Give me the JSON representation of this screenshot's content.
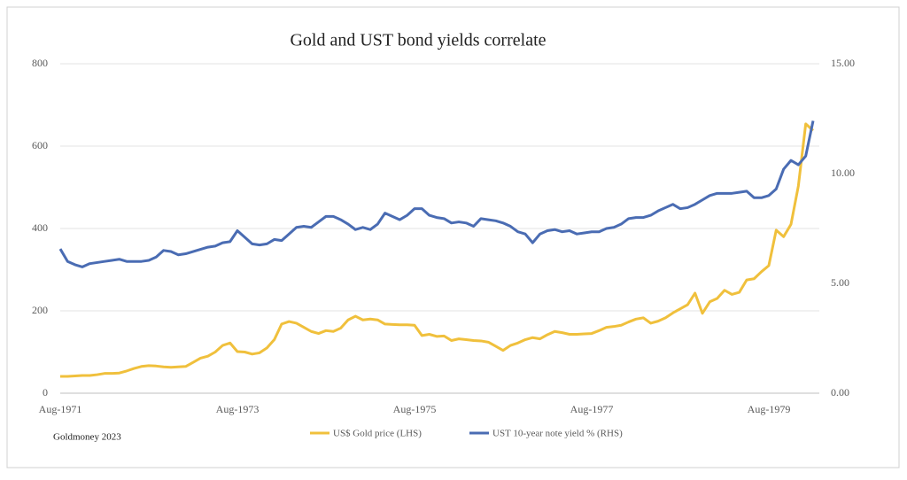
{
  "chart_data": {
    "type": "line",
    "title": "Gold and UST bond yields correlate",
    "annotation": "Goldmoney 2023",
    "categories": [
      "Aug-1971",
      null,
      null,
      null,
      null,
      null,
      null,
      null,
      null,
      null,
      null,
      null,
      null,
      null,
      null,
      null,
      null,
      null,
      null,
      null,
      null,
      null,
      null,
      null,
      "Aug-1973",
      null,
      null,
      null,
      null,
      null,
      null,
      null,
      null,
      null,
      null,
      null,
      null,
      null,
      null,
      null,
      null,
      null,
      null,
      null,
      null,
      null,
      null,
      null,
      "Aug-1975",
      null,
      null,
      null,
      null,
      null,
      null,
      null,
      null,
      null,
      null,
      null,
      null,
      null,
      null,
      null,
      null,
      null,
      null,
      null,
      null,
      null,
      null,
      null,
      "Aug-1977",
      null,
      null,
      null,
      null,
      null,
      null,
      null,
      null,
      null,
      null,
      null,
      null,
      null,
      null,
      null,
      null,
      null,
      null,
      null,
      null,
      null,
      null,
      null,
      "Aug-1979",
      null,
      null,
      null,
      null,
      null,
      null
    ],
    "series": [
      {
        "name": "US$ Gold price (LHS)",
        "color": "#f0c03c",
        "axis": "y",
        "values": [
          41,
          41,
          42,
          43,
          43,
          45,
          48,
          48,
          49,
          54,
          60,
          65,
          67,
          66,
          64,
          63,
          64,
          65,
          75,
          85,
          90,
          100,
          116,
          122,
          101,
          100,
          95,
          98,
          110,
          130,
          168,
          174,
          170,
          160,
          150,
          145,
          152,
          150,
          158,
          178,
          187,
          178,
          180,
          178,
          168,
          167,
          166,
          166,
          165,
          140,
          143,
          138,
          139,
          128,
          132,
          130,
          128,
          127,
          124,
          114,
          104,
          116,
          122,
          130,
          135,
          132,
          142,
          150,
          147,
          143,
          143,
          144,
          145,
          152,
          160,
          162,
          165,
          173,
          180,
          183,
          170,
          175,
          183,
          195,
          205,
          215,
          243,
          194,
          222,
          230,
          250,
          240,
          245,
          275,
          278,
          295,
          310,
          396,
          380,
          410,
          503,
          654,
          638
        ]
      },
      {
        "name": "UST 10-year note yield % (RHS)",
        "color": "#4a6cb3",
        "axis": "y2",
        "values": [
          6.57,
          6.0,
          5.85,
          5.75,
          5.9,
          5.95,
          6.0,
          6.05,
          6.1,
          6.0,
          6.0,
          6.0,
          6.05,
          6.2,
          6.5,
          6.45,
          6.3,
          6.35,
          6.45,
          6.55,
          6.65,
          6.7,
          6.85,
          6.9,
          7.4,
          7.1,
          6.8,
          6.75,
          6.8,
          7.0,
          6.95,
          7.25,
          7.55,
          7.6,
          7.55,
          7.8,
          8.05,
          8.05,
          7.9,
          7.7,
          7.45,
          7.55,
          7.45,
          7.7,
          8.2,
          8.05,
          7.9,
          8.1,
          8.4,
          8.4,
          8.1,
          8.0,
          7.95,
          7.75,
          7.8,
          7.75,
          7.6,
          7.95,
          7.9,
          7.85,
          7.75,
          7.6,
          7.35,
          7.25,
          6.85,
          7.25,
          7.4,
          7.45,
          7.35,
          7.4,
          7.25,
          7.3,
          7.35,
          7.35,
          7.5,
          7.55,
          7.7,
          7.95,
          8.0,
          8.0,
          8.1,
          8.3,
          8.45,
          8.6,
          8.4,
          8.45,
          8.6,
          8.8,
          9.0,
          9.1,
          9.1,
          9.1,
          9.15,
          9.2,
          8.9,
          8.9,
          9.0,
          9.3,
          10.2,
          10.6,
          10.4,
          10.8,
          12.4
        ]
      }
    ],
    "ylim": [
      0,
      800
    ],
    "yticks": [
      0,
      200,
      400,
      600,
      800
    ],
    "y2lim": [
      0,
      15
    ],
    "y2ticks": [
      {
        "value": 0,
        "label": "0.00"
      },
      {
        "value": 5,
        "label": "5.00"
      },
      {
        "value": 10,
        "label": "10.00"
      },
      {
        "value": 15,
        "label": "15.00"
      }
    ],
    "grid": true,
    "legend": "bottom"
  }
}
